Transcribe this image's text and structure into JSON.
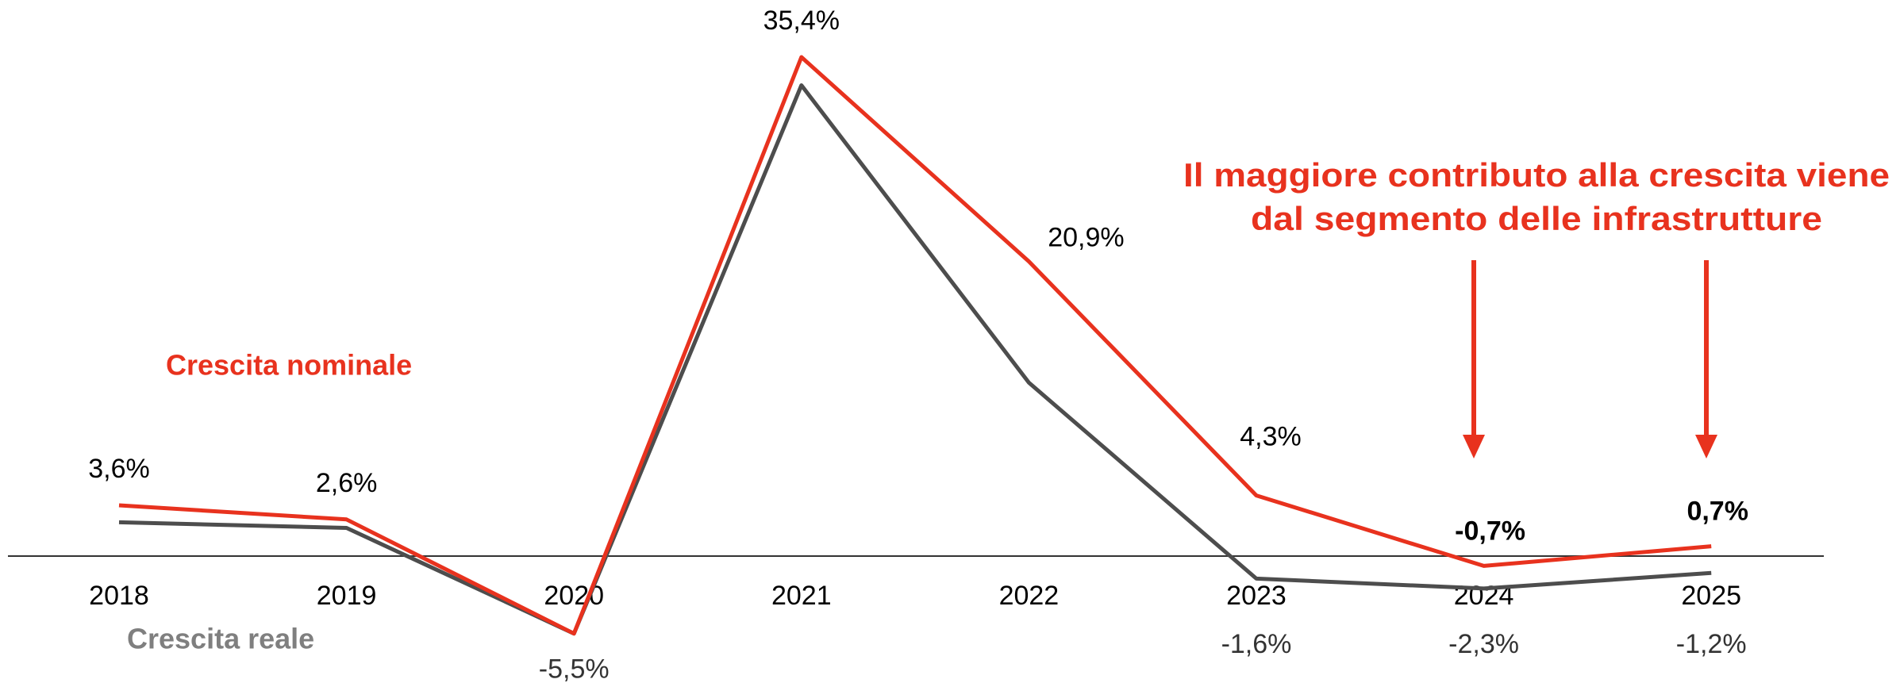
{
  "chart_data": {
    "type": "line",
    "categories": [
      "2018",
      "2019",
      "2020",
      "2021",
      "2022",
      "2023",
      "2024",
      "2025"
    ],
    "series": [
      {
        "name": "Crescita nominale",
        "color": "#e8321e",
        "values": [
          3.6,
          2.6,
          -5.5,
          35.4,
          20.9,
          4.3,
          -0.7,
          0.7
        ],
        "value_labels": [
          "3,6%",
          "2,6%",
          null,
          "35,4%",
          "20,9%",
          "4,3%",
          "-0,7%",
          "0,7%"
        ]
      },
      {
        "name": "Crescita reale",
        "color": "#4d4d4d",
        "values": [
          2.4,
          2.0,
          -5.5,
          33.4,
          12.3,
          -1.6,
          -2.3,
          -1.2
        ],
        "value_labels": [
          null,
          null,
          "-5,5%",
          null,
          null,
          "-1,6%",
          "-2,3%",
          "-1,2%"
        ]
      }
    ],
    "annotations": [
      "Il maggiore contributo alla crescita viene",
      "dal segmento delle infrastrutture"
    ]
  }
}
